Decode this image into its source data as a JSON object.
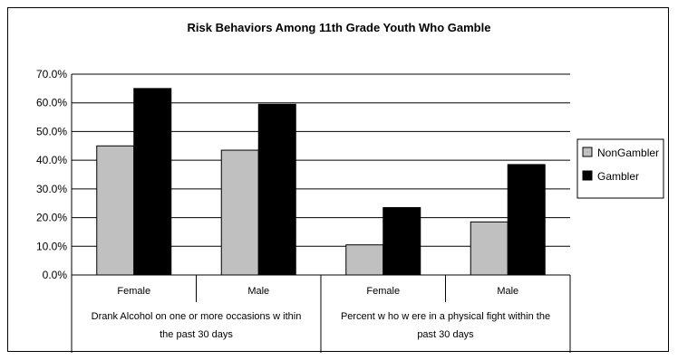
{
  "chart_data": {
    "type": "bar",
    "title": "Risk Behaviors Among 11th Grade Youth Who Gamble",
    "ylim": [
      0,
      70
    ],
    "yticks": [
      "0.0%",
      "10.0%",
      "20.0%",
      "30.0%",
      "40.0%",
      "50.0%",
      "60.0%",
      "70.0%"
    ],
    "grid": true,
    "legend_position": "right",
    "categories": [
      "Female",
      "Male",
      "Female",
      "Male"
    ],
    "groups": [
      {
        "label_lines": [
          "Drank Alcohol on one or more occasions w ithin",
          "the past 30 days"
        ],
        "span": [
          0,
          1
        ]
      },
      {
        "label_lines": [
          "Percent w ho w ere in a physical fight within the",
          "past 30 days"
        ],
        "span": [
          2,
          3
        ]
      }
    ],
    "series": [
      {
        "name": "NonGambler",
        "values": [
          45,
          43.5,
          10.5,
          18.5
        ],
        "color": "#c0c0c0"
      },
      {
        "name": "Gambler",
        "values": [
          65,
          59.5,
          23.5,
          38.5
        ],
        "color": "#000000"
      }
    ]
  }
}
